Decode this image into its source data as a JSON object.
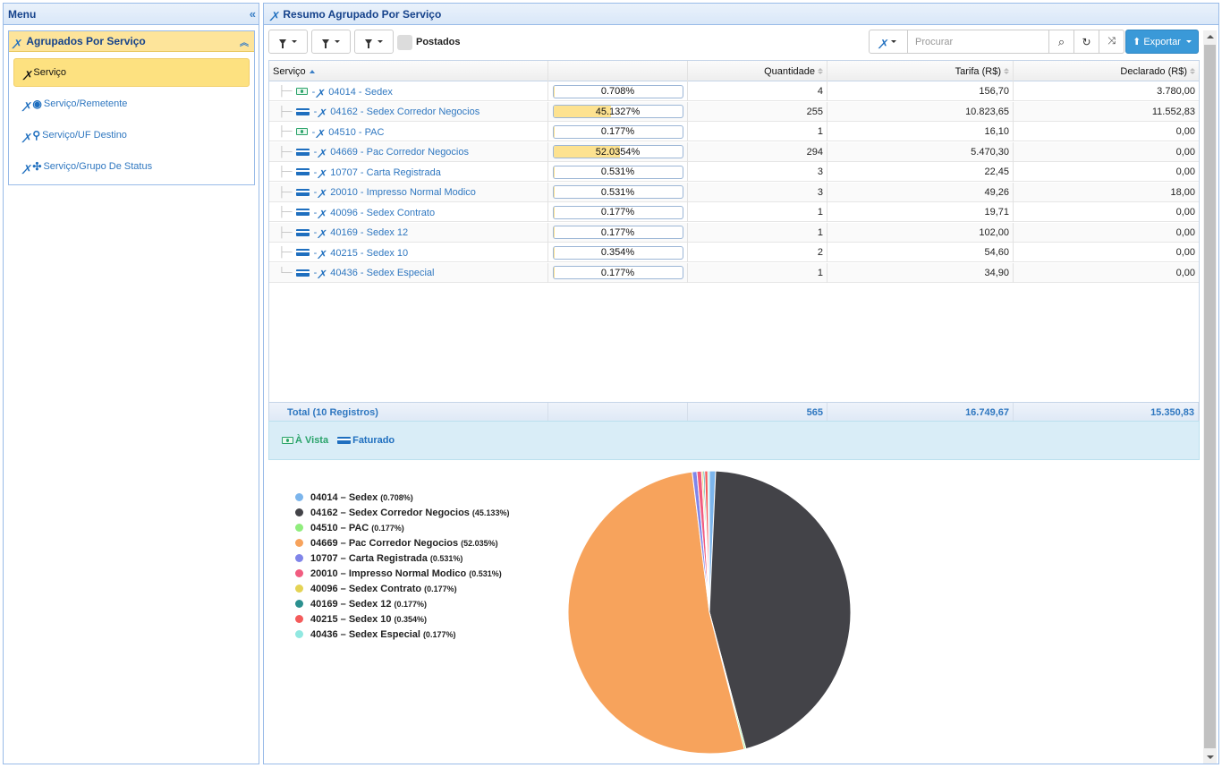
{
  "menu": {
    "title": "Menu",
    "group_title": "Agrupados Por Serviço",
    "items": [
      {
        "label": "Serviço",
        "active": true
      },
      {
        "label": "Serviço/Remetente",
        "active": false
      },
      {
        "label": "Serviço/UF Destino",
        "active": false
      },
      {
        "label": "Serviço/Grupo De Status",
        "active": false
      }
    ]
  },
  "main": {
    "title": "Resumo Agrupado Por Serviço"
  },
  "toolbar": {
    "postados_label": "Postados",
    "search_placeholder": "Procurar",
    "export_label": "Exportar"
  },
  "grid": {
    "columns": [
      "Serviço",
      "",
      "Quantidade",
      "Tarifa (R$)",
      "Declarado (R$)"
    ],
    "rows": [
      {
        "code": "04014",
        "name": "Sedex",
        "payment": "avista",
        "percent": 0.708,
        "percent_label": "0.708%",
        "quantidade": "4",
        "tarifa": "156,70",
        "declarado": "3.780,00"
      },
      {
        "code": "04162",
        "name": "Sedex Corredor Negocios",
        "payment": "faturado",
        "percent": 45.1327,
        "percent_label": "45.1327%",
        "quantidade": "255",
        "tarifa": "10.823,65",
        "declarado": "11.552,83"
      },
      {
        "code": "04510",
        "name": "PAC",
        "payment": "avista",
        "percent": 0.177,
        "percent_label": "0.177%",
        "quantidade": "1",
        "tarifa": "16,10",
        "declarado": "0,00"
      },
      {
        "code": "04669",
        "name": "Pac Corredor Negocios",
        "payment": "faturado",
        "percent": 52.0354,
        "percent_label": "52.0354%",
        "quantidade": "294",
        "tarifa": "5.470,30",
        "declarado": "0,00"
      },
      {
        "code": "10707",
        "name": "Carta Registrada",
        "payment": "faturado",
        "percent": 0.531,
        "percent_label": "0.531%",
        "quantidade": "3",
        "tarifa": "22,45",
        "declarado": "0,00"
      },
      {
        "code": "20010",
        "name": "Impresso Normal Modico",
        "payment": "faturado",
        "percent": 0.531,
        "percent_label": "0.531%",
        "quantidade": "3",
        "tarifa": "49,26",
        "declarado": "18,00"
      },
      {
        "code": "40096",
        "name": "Sedex Contrato",
        "payment": "faturado",
        "percent": 0.177,
        "percent_label": "0.177%",
        "quantidade": "1",
        "tarifa": "19,71",
        "declarado": "0,00"
      },
      {
        "code": "40169",
        "name": "Sedex 12",
        "payment": "faturado",
        "percent": 0.177,
        "percent_label": "0.177%",
        "quantidade": "1",
        "tarifa": "102,00",
        "declarado": "0,00"
      },
      {
        "code": "40215",
        "name": "Sedex 10",
        "payment": "faturado",
        "percent": 0.354,
        "percent_label": "0.354%",
        "quantidade": "2",
        "tarifa": "54,60",
        "declarado": "0,00"
      },
      {
        "code": "40436",
        "name": "Sedex Especial",
        "payment": "faturado",
        "percent": 0.177,
        "percent_label": "0.177%",
        "quantidade": "1",
        "tarifa": "34,90",
        "declarado": "0,00"
      }
    ],
    "total": {
      "label": "Total (10 Registros)",
      "quantidade": "565",
      "tarifa": "16.749,67",
      "declarado": "15.350,83"
    }
  },
  "legend": {
    "avista_label": "À Vista",
    "faturado_label": "Faturado"
  },
  "chart_data": {
    "type": "pie",
    "legend_position": "left",
    "slices": [
      {
        "label": "04014 – Sedex",
        "pct_label": "(0.708%)",
        "value": 0.708,
        "color": "#7cb5ec"
      },
      {
        "label": "04162 – Sedex Corredor Negocios",
        "pct_label": "(45.133%)",
        "value": 45.133,
        "color": "#434348"
      },
      {
        "label": "04510 – PAC",
        "pct_label": "(0.177%)",
        "value": 0.177,
        "color": "#90ed7d"
      },
      {
        "label": "04669 – Pac Corredor Negocios",
        "pct_label": "(52.035%)",
        "value": 52.035,
        "color": "#f7a35c"
      },
      {
        "label": "10707 – Carta Registrada",
        "pct_label": "(0.531%)",
        "value": 0.531,
        "color": "#8085e9"
      },
      {
        "label": "20010 – Impresso Normal Modico",
        "pct_label": "(0.531%)",
        "value": 0.531,
        "color": "#f15c80"
      },
      {
        "label": "40096 – Sedex Contrato",
        "pct_label": "(0.177%)",
        "value": 0.177,
        "color": "#e4d354"
      },
      {
        "label": "40169 – Sedex 12",
        "pct_label": "(0.177%)",
        "value": 0.177,
        "color": "#2b908f"
      },
      {
        "label": "40215 – Sedex 10",
        "pct_label": "(0.354%)",
        "value": 0.354,
        "color": "#f45b5b"
      },
      {
        "label": "40436 – Sedex Especial",
        "pct_label": "(0.177%)",
        "value": 0.177,
        "color": "#91e8e1"
      }
    ]
  }
}
